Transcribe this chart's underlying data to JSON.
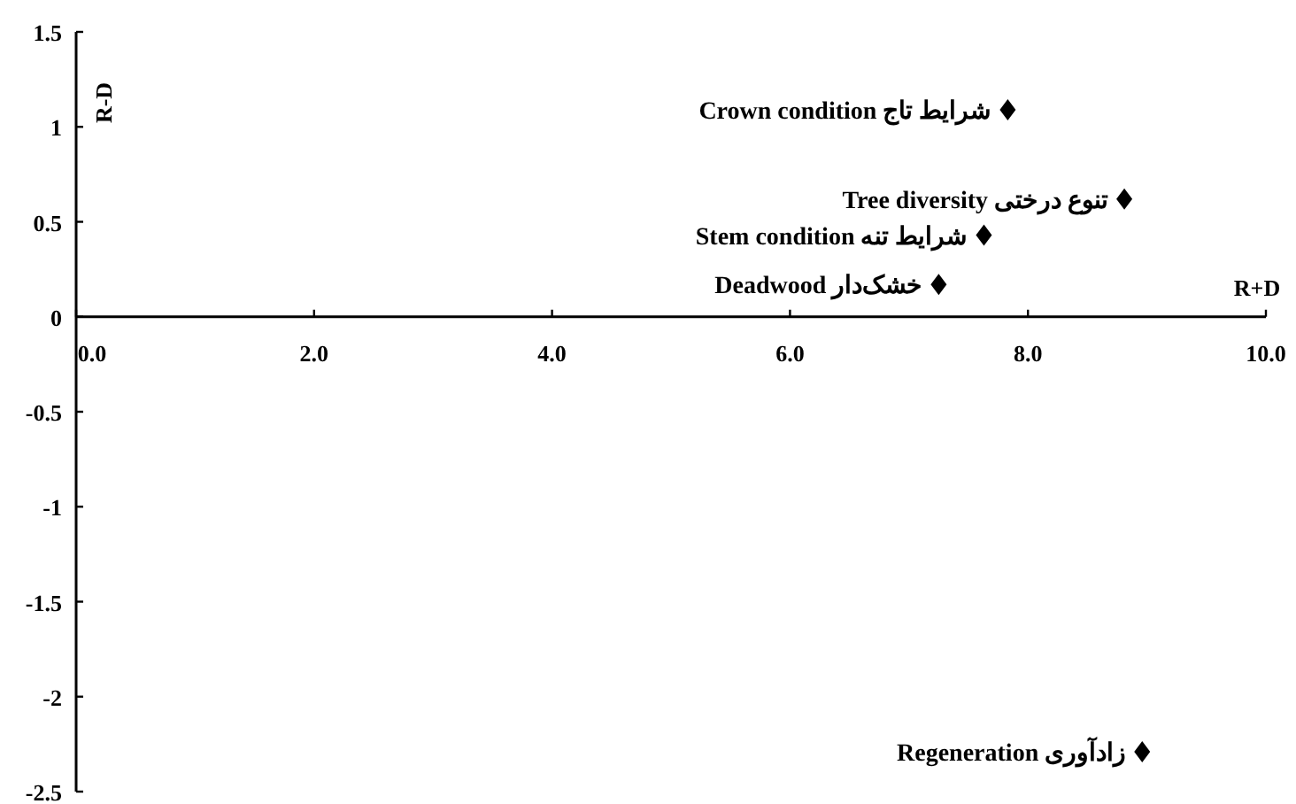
{
  "chart_data": {
    "type": "scatter",
    "xlabel": "R+D",
    "ylabel": "R-D",
    "marker": "diamond",
    "x": [
      7.83,
      8.81,
      7.63,
      7.25,
      8.96
    ],
    "series": [
      {
        "color": "#000000",
        "values": [
          1.09,
          0.62,
          0.43,
          0.17,
          -2.29
        ]
      }
    ],
    "annotations": [
      {
        "text": "Crown condition  شرایط تاج",
        "x": 7.83,
        "y": 1.09
      },
      {
        "text": "Tree diversity تنوع درختی",
        "x": 8.81,
        "y": 0.62
      },
      {
        "text": "Stem condition شرایط تنه",
        "x": 7.63,
        "y": 0.43
      },
      {
        "text": "Deadwood خشک‌دار",
        "x": 7.25,
        "y": 0.17
      },
      {
        "text": "Regeneration زادآوری",
        "x": 8.96,
        "y": -2.29
      }
    ],
    "xlim": [
      0,
      10
    ],
    "ylim": [
      -2.5,
      1.5
    ],
    "xticks": [
      {
        "value": 0,
        "label": "0.0"
      },
      {
        "value": 2,
        "label": "2.0"
      },
      {
        "value": 4,
        "label": "4.0"
      },
      {
        "value": 6,
        "label": "6.0"
      },
      {
        "value": 8,
        "label": "8.0"
      },
      {
        "value": 10,
        "label": "10.0"
      }
    ],
    "yticks": [
      1.5,
      1,
      0.5,
      0,
      -0.5,
      -1,
      -1.5,
      -2,
      -2.5
    ]
  }
}
